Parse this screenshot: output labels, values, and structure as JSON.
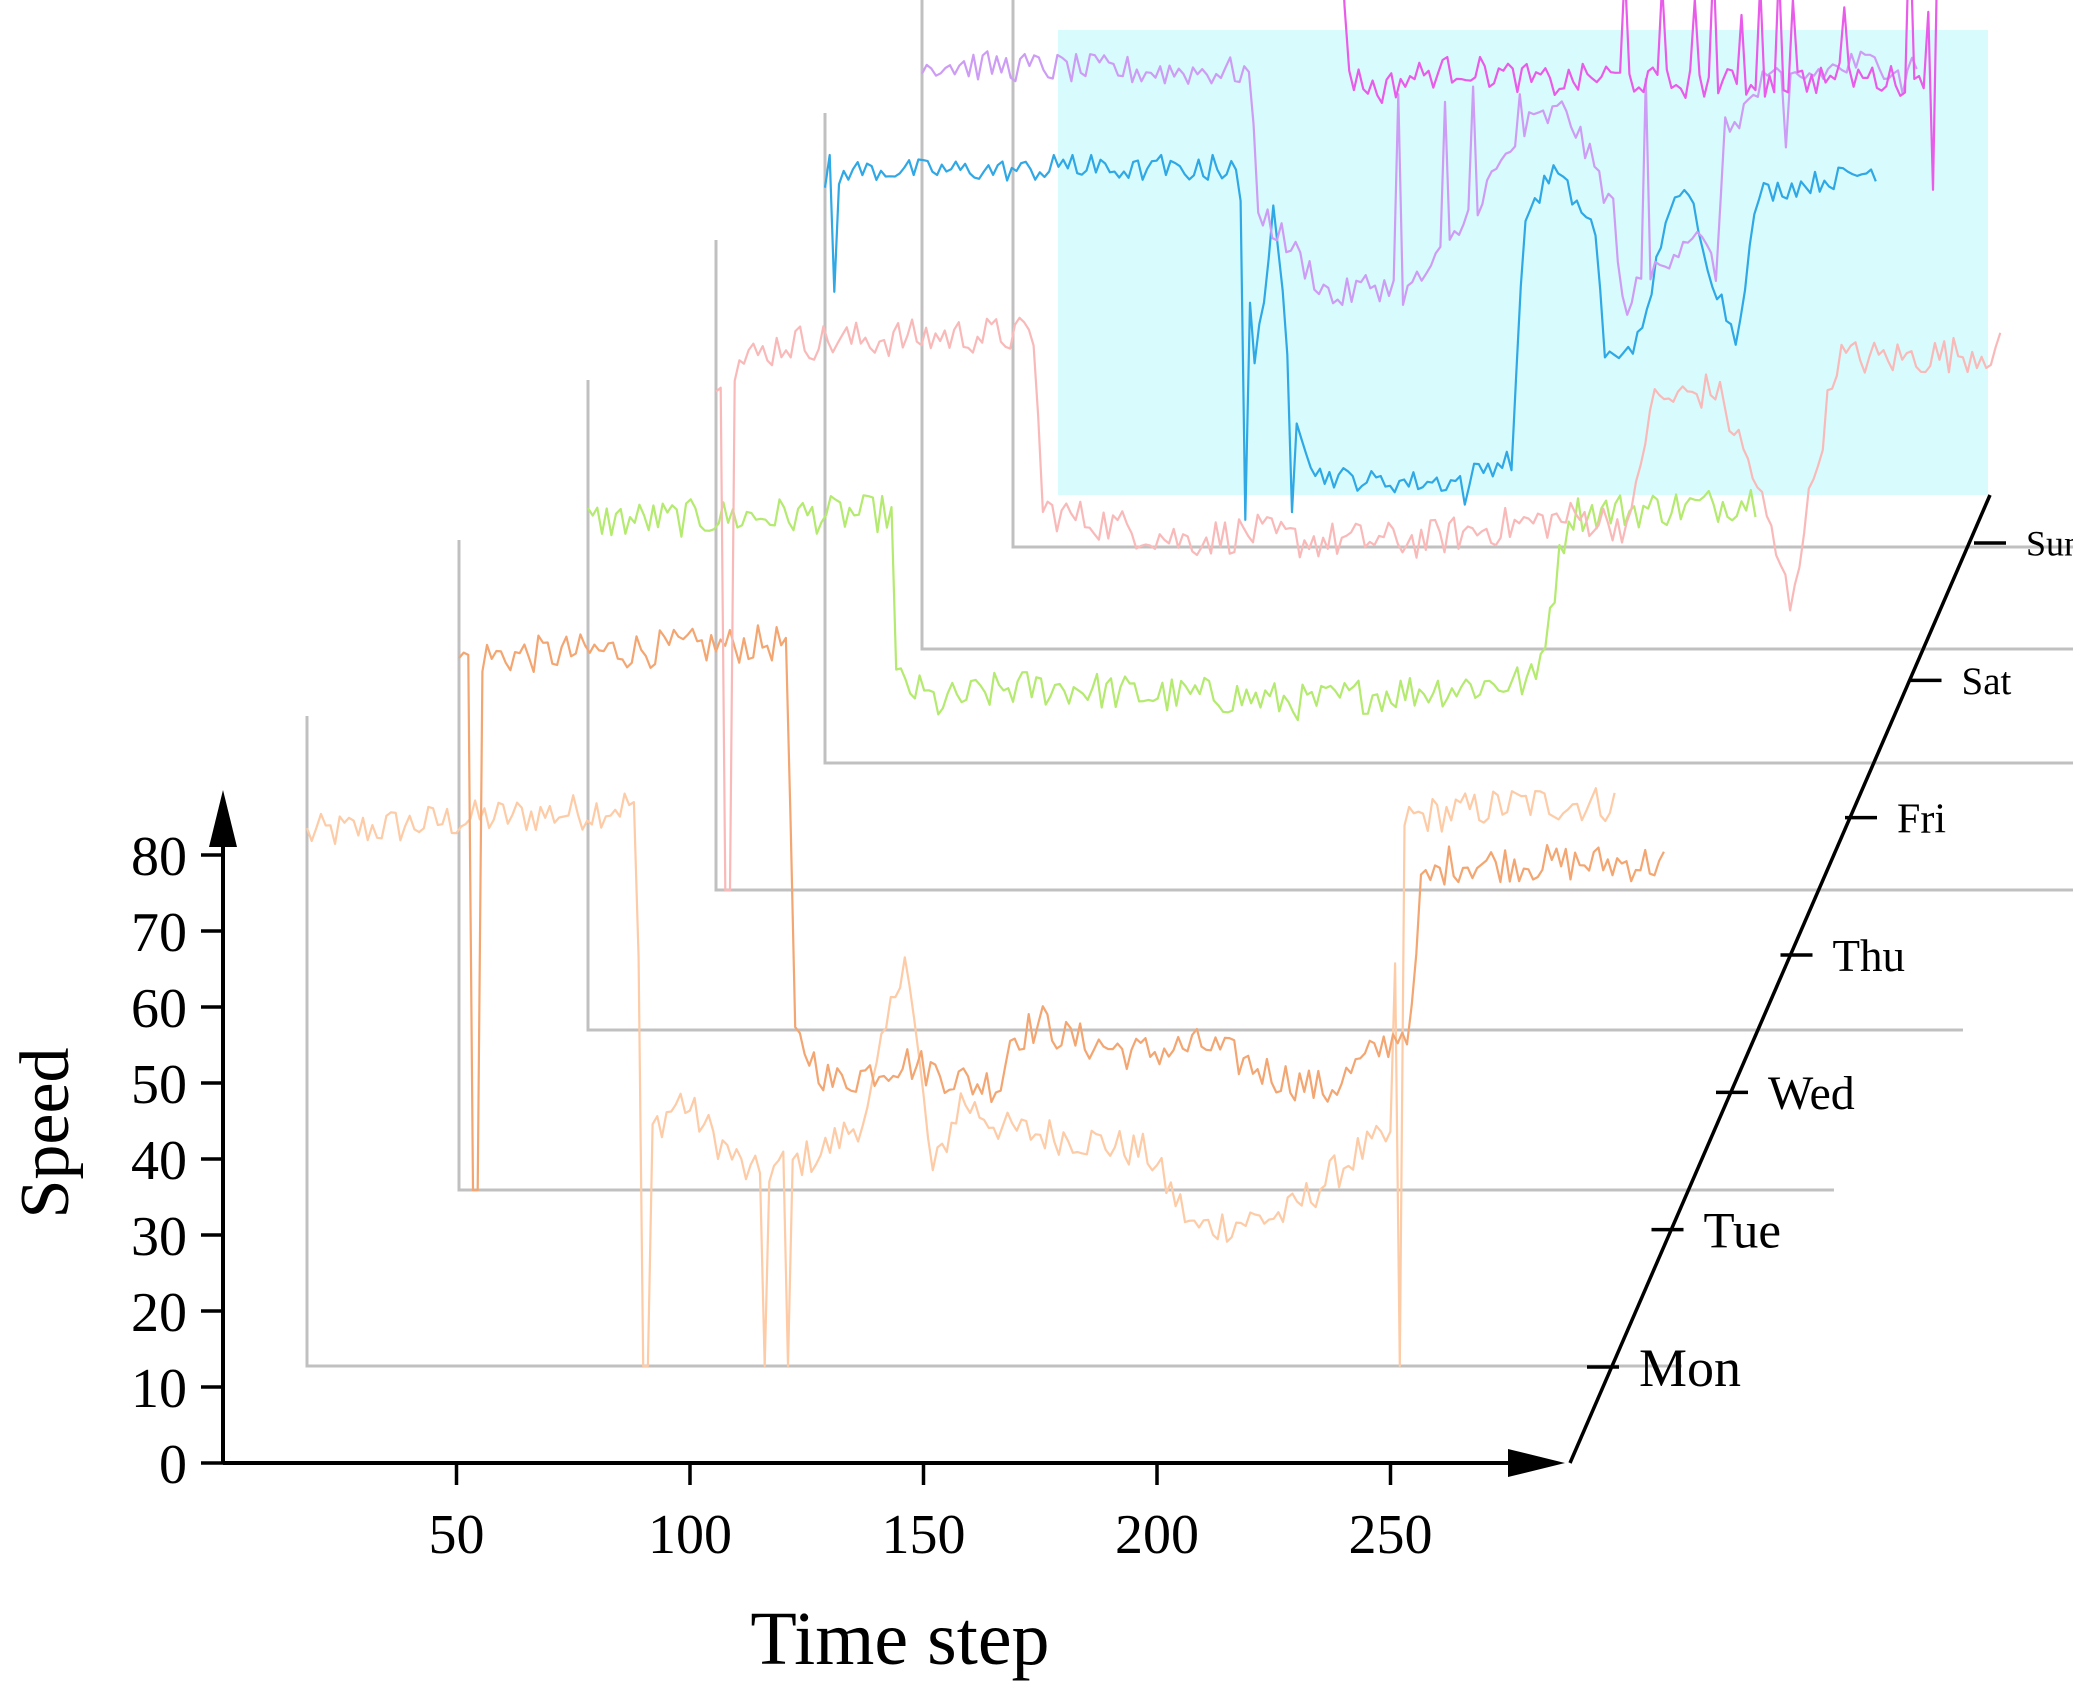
{
  "chart_data": {
    "type": "line",
    "subtype": "3d-waterfall",
    "xlabel": "Time step",
    "ylabel": "Speed",
    "xticks": [
      50,
      100,
      150,
      200,
      250
    ],
    "yticks": [
      0,
      10,
      20,
      30,
      40,
      50,
      60,
      70,
      80
    ],
    "xlim": [
      0,
      288
    ],
    "ylim": [
      0,
      85
    ],
    "highlight_color": "#d8fcfd",
    "series": [
      {
        "name": "Mon",
        "color": "#fdcba6",
        "start": 0,
        "end": 280,
        "segments": [
          [
            0,
            70
          ],
          [
            18,
            71
          ],
          [
            35,
            72
          ],
          [
            60,
            73
          ],
          [
            70,
            74
          ],
          [
            72,
            30
          ],
          [
            80,
            35
          ],
          [
            95,
            25
          ],
          [
            110,
            28
          ],
          [
            120,
            33
          ],
          [
            128,
            55
          ],
          [
            134,
            25
          ],
          [
            140,
            35
          ],
          [
            150,
            31
          ],
          [
            165,
            30
          ],
          [
            180,
            28
          ],
          [
            190,
            18
          ],
          [
            210,
            20
          ],
          [
            225,
            28
          ],
          [
            232,
            30
          ],
          [
            234,
            72
          ],
          [
            260,
            74
          ],
          [
            280,
            74
          ]
        ],
        "noise": 2.5,
        "spikes": [
          [
            72,
            0
          ],
          [
            73,
            0
          ],
          [
            98,
            0
          ],
          [
            103,
            0
          ],
          [
            234,
            0
          ]
        ]
      },
      {
        "name": "Tue",
        "color": "#f3a671",
        "start": 0,
        "end": 258,
        "segments": [
          [
            0,
            70
          ],
          [
            70,
            72
          ],
          [
            72,
            20
          ],
          [
            80,
            14
          ],
          [
            95,
            17
          ],
          [
            110,
            14
          ],
          [
            116,
            14
          ],
          [
            118,
            20
          ],
          [
            125,
            22
          ],
          [
            130,
            20
          ],
          [
            145,
            18
          ],
          [
            160,
            19
          ],
          [
            175,
            15
          ],
          [
            186,
            13
          ],
          [
            196,
            18
          ],
          [
            204,
            22
          ],
          [
            206,
            40
          ],
          [
            212,
            43
          ],
          [
            230,
            43
          ],
          [
            258,
            43
          ]
        ],
        "noise": 2.5,
        "spikes": [
          [
            3,
            0
          ],
          [
            4,
            0
          ]
        ]
      },
      {
        "name": "Wed",
        "color": "#b4ea6f",
        "start": 0,
        "end": 250,
        "segments": [
          [
            0,
            67
          ],
          [
            65,
            68
          ],
          [
            66,
            46
          ],
          [
            75,
            43
          ],
          [
            90,
            45
          ],
          [
            105,
            45
          ],
          [
            120,
            44
          ],
          [
            135,
            44
          ],
          [
            155,
            43
          ],
          [
            165,
            44
          ],
          [
            203,
            46
          ],
          [
            210,
            68
          ],
          [
            240,
            69
          ],
          [
            250,
            70
          ]
        ],
        "noise": 2.5,
        "spikes": []
      },
      {
        "name": "Thu",
        "color": "#f9b9b9",
        "start": 0,
        "end": 275,
        "segments": [
          [
            0,
            68
          ],
          [
            15,
            72
          ],
          [
            55,
            73
          ],
          [
            68,
            73
          ],
          [
            70,
            50
          ],
          [
            85,
            48
          ],
          [
            100,
            46
          ],
          [
            115,
            47
          ],
          [
            125,
            46
          ],
          [
            138,
            46
          ],
          [
            150,
            46
          ],
          [
            170,
            48
          ],
          [
            185,
            49
          ],
          [
            196,
            48
          ],
          [
            200,
            64
          ],
          [
            214,
            66
          ],
          [
            222,
            55
          ],
          [
            230,
            38
          ],
          [
            240,
            70
          ],
          [
            255,
            70
          ],
          [
            275,
            71
          ]
        ],
        "noise": 2.5,
        "spikes": [
          [
            2,
            0
          ],
          [
            3,
            0
          ]
        ]
      },
      {
        "name": "Fri",
        "color": "#2fa8e5",
        "start": 0,
        "end": 225,
        "segments": [
          [
            0,
            75
          ],
          [
            5,
            78
          ],
          [
            60,
            78
          ],
          [
            88,
            78
          ],
          [
            90,
            68
          ],
          [
            92,
            54
          ],
          [
            95,
            65
          ],
          [
            96,
            72
          ],
          [
            98,
            62
          ],
          [
            100,
            48
          ],
          [
            105,
            38
          ],
          [
            118,
            37
          ],
          [
            135,
            37
          ],
          [
            142,
            39
          ],
          [
            147,
            40
          ],
          [
            150,
            72
          ],
          [
            156,
            78
          ],
          [
            165,
            70
          ],
          [
            167,
            53
          ],
          [
            175,
            56
          ],
          [
            180,
            72
          ],
          [
            185,
            75
          ],
          [
            190,
            64
          ],
          [
            195,
            56
          ],
          [
            200,
            75
          ],
          [
            225,
            78
          ]
        ],
        "noise": 1.5,
        "spikes": [
          [
            1,
            80
          ],
          [
            2,
            62
          ],
          [
            49,
            80
          ],
          [
            53,
            80
          ],
          [
            57,
            80
          ],
          [
            72,
            80
          ],
          [
            83,
            80
          ],
          [
            90,
            32
          ],
          [
            100,
            33
          ],
          [
            137,
            34
          ],
          [
            161,
            74
          ],
          [
            171,
            54
          ],
          [
            187,
            70
          ]
        ]
      },
      {
        "name": "Sat",
        "color": "#cd9cf4",
        "start": 0,
        "end": 213,
        "segments": [
          [
            0,
            77
          ],
          [
            50,
            76
          ],
          [
            70,
            76
          ],
          [
            72,
            58
          ],
          [
            80,
            52
          ],
          [
            88,
            46
          ],
          [
            96,
            48
          ],
          [
            104,
            47
          ],
          [
            112,
            52
          ],
          [
            120,
            60
          ],
          [
            130,
            69
          ],
          [
            138,
            71
          ],
          [
            148,
            58
          ],
          [
            150,
            45
          ],
          [
            160,
            52
          ],
          [
            165,
            55
          ],
          [
            170,
            50
          ],
          [
            172,
            68
          ],
          [
            180,
            74
          ],
          [
            200,
            77
          ],
          [
            213,
            77
          ]
        ],
        "noise": 2.0,
        "spikes": [
          [
            102,
            73
          ],
          [
            112,
            72
          ],
          [
            118,
            74
          ],
          [
            128,
            73
          ],
          [
            155,
            75
          ],
          [
            180,
            76
          ],
          [
            185,
            66
          ],
          [
            210,
            73
          ]
        ]
      },
      {
        "name": "Sun",
        "color": "#e95be9",
        "start": 0,
        "end": 288,
        "segments": [
          [
            0,
            82
          ],
          [
            70,
            83
          ],
          [
            72,
            62
          ],
          [
            78,
            60
          ],
          [
            86,
            62
          ],
          [
            96,
            63
          ],
          [
            106,
            62
          ],
          [
            116,
            61
          ],
          [
            126,
            62
          ],
          [
            140,
            61
          ],
          [
            162,
            61
          ],
          [
            180,
            62
          ],
          [
            195,
            61
          ],
          [
            197,
            83
          ],
          [
            240,
            83
          ],
          [
            253,
            84
          ],
          [
            257,
            62
          ],
          [
            266,
            64
          ],
          [
            270,
            83
          ],
          [
            288,
            84
          ]
        ],
        "noise": 2.0,
        "spikes": [
          [
            131,
            76
          ],
          [
            139,
            74
          ],
          [
            146,
            72
          ],
          [
            150,
            77
          ],
          [
            156,
            70
          ],
          [
            160,
            74
          ],
          [
            164,
            76
          ],
          [
            167,
            72
          ],
          [
            175,
            62
          ],
          [
            178,
            71
          ],
          [
            192,
            83
          ],
          [
            197,
            47
          ],
          [
            199,
            83
          ],
          [
            242,
            72
          ],
          [
            244,
            83
          ],
          [
            250,
            72
          ],
          [
            254,
            63
          ],
          [
            255,
            51
          ],
          [
            261,
            47
          ]
        ]
      }
    ]
  }
}
